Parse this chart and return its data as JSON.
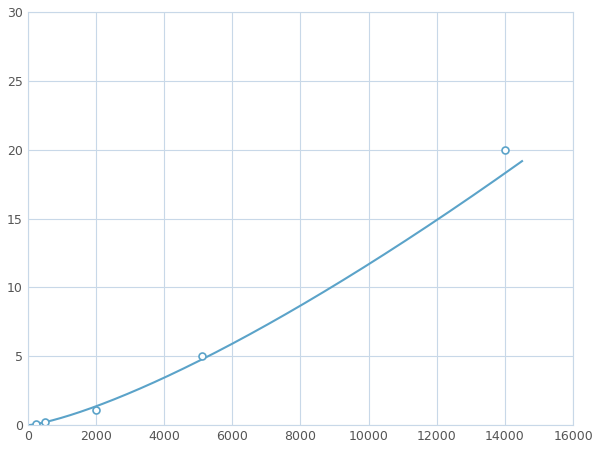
{
  "x": [
    250,
    500,
    2000,
    5100,
    14000
  ],
  "y": [
    0.1,
    0.2,
    1.1,
    5.0,
    20.0
  ],
  "line_color": "#5ba3c9",
  "marker_color": "#5ba3c9",
  "marker_size": 5,
  "marker_style": "o",
  "line_width": 1.5,
  "xlim": [
    0,
    16000
  ],
  "ylim": [
    0,
    30
  ],
  "xticks": [
    0,
    2000,
    4000,
    6000,
    8000,
    10000,
    12000,
    14000,
    16000
  ],
  "yticks": [
    0,
    5,
    10,
    15,
    20,
    25,
    30
  ],
  "grid_color": "#c8d8e8",
  "background_color": "#ffffff",
  "figsize": [
    6.0,
    4.5
  ],
  "dpi": 100
}
